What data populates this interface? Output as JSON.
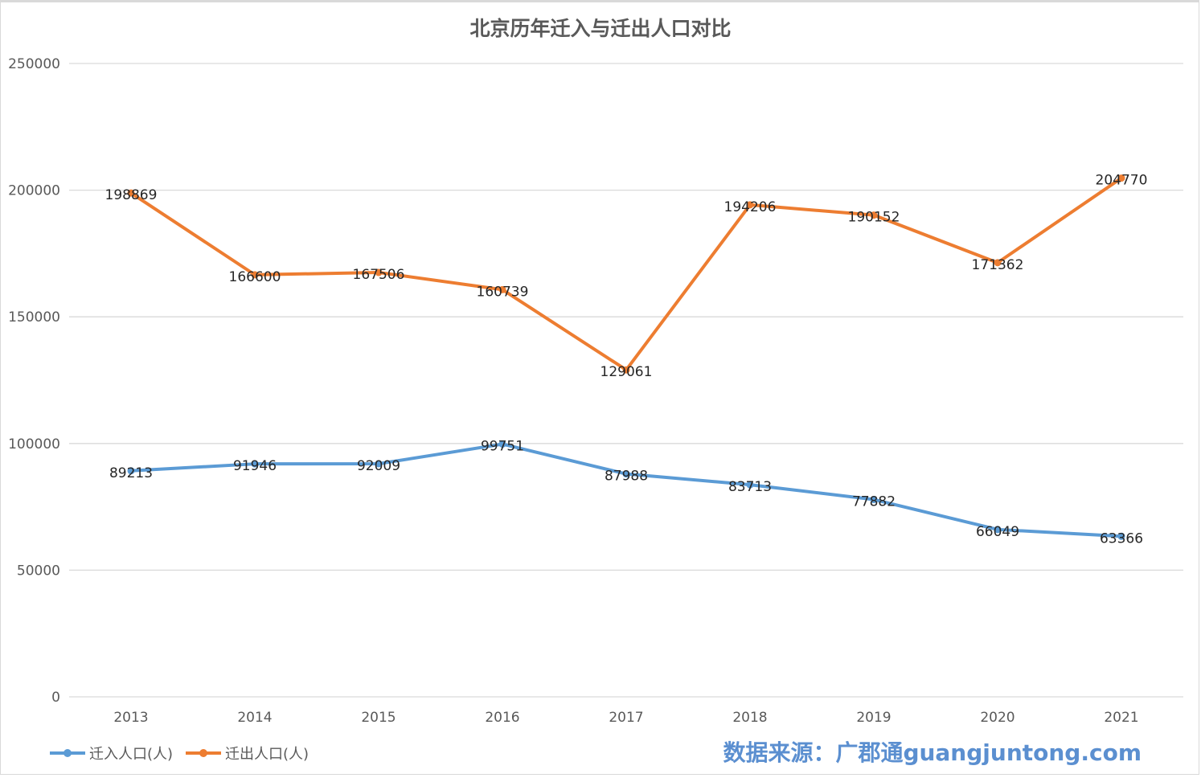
{
  "chart_data": {
    "type": "line",
    "title": "北京历年迁入与迁出人口对比",
    "xlabel": "",
    "ylabel": "",
    "categories": [
      "2013",
      "2014",
      "2015",
      "2016",
      "2017",
      "2018",
      "2019",
      "2020",
      "2021"
    ],
    "ylim": [
      0,
      250000
    ],
    "yticks": [
      0,
      50000,
      100000,
      150000,
      200000,
      250000
    ],
    "grid": true,
    "legend_position": "bottom-left",
    "data_labels": true,
    "series": [
      {
        "name": "迁入人口(人)",
        "color": "#5b9bd5",
        "values": [
          89213,
          91946,
          92009,
          99751,
          87988,
          83713,
          77882,
          66049,
          63366
        ]
      },
      {
        "name": "迁出人口(人)",
        "color": "#ed7d31",
        "values": [
          198869,
          166600,
          167506,
          160739,
          129061,
          194206,
          190152,
          171362,
          204770
        ]
      }
    ]
  },
  "source_note": "数据来源：广郡通guangjuntong.com"
}
